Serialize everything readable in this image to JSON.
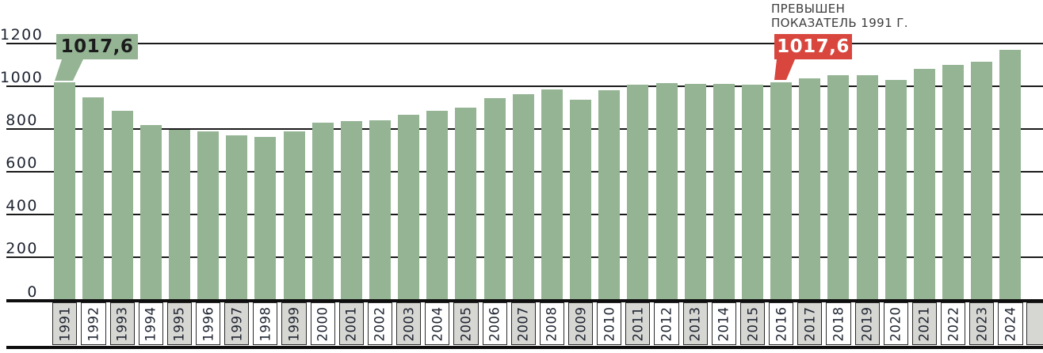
{
  "chart_data": {
    "type": "bar",
    "title": "",
    "categories": [
      "1991",
      "1992",
      "1993",
      "1994",
      "1995",
      "1996",
      "1997",
      "1998",
      "1999",
      "2000",
      "2001",
      "2002",
      "2003",
      "2004",
      "2005",
      "2006",
      "2007",
      "2008",
      "2009",
      "2010",
      "2011",
      "2012",
      "2013",
      "2014",
      "2015",
      "2016",
      "2017",
      "2018",
      "2019",
      "2020",
      "2021",
      "2022",
      "2023",
      "2024"
    ],
    "values": [
      1017.6,
      950,
      885,
      820,
      798,
      789,
      773,
      764,
      789,
      830,
      837,
      841,
      866,
      887,
      901,
      945,
      963,
      984,
      938,
      982,
      1007,
      1014,
      1010,
      1012,
      1008,
      1017.6,
      1036,
      1051,
      1051,
      1030,
      1083,
      1100,
      1115,
      1170
    ],
    "ylim": [
      0,
      1200
    ],
    "yticks": [
      0,
      200,
      400,
      600,
      800,
      1000,
      1200
    ],
    "ytick_labels": [
      "0",
      "200",
      "400",
      "600",
      "800",
      "1000",
      "1200"
    ],
    "grid": "horizontal",
    "legend": "none",
    "colors": {
      "bar": "#94b494",
      "gridline": "#1a1a1a",
      "axis_text": "#1d2330",
      "tick_box_gray": "#d6d6d2",
      "tick_box_white": "#ffffff"
    },
    "annotations": {
      "start_callout": {
        "year": "1991",
        "value_label": "1017,6",
        "box_color": "#94b494",
        "text_color": "#1b1b1b"
      },
      "record_callout": {
        "year": "2016",
        "value_label": "1017,6",
        "box_color": "#d8463e",
        "text_color": "#ffffff"
      },
      "record_note_line1": "ПРЕВЫШЕН",
      "record_note_line2": "ПОКАЗАТЕЛЬ 1991 Г."
    }
  }
}
